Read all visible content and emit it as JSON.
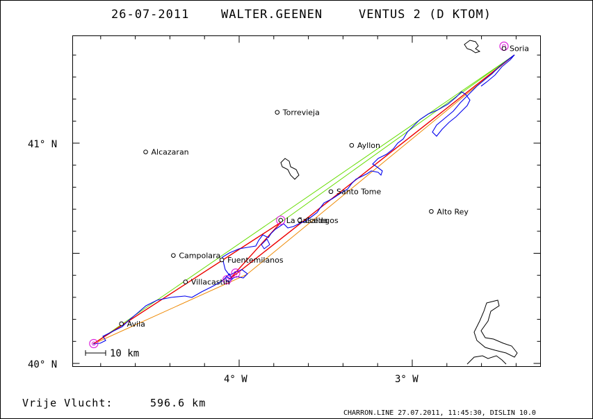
{
  "title": {
    "date": "26-07-2011",
    "pilot": "WALTER.GEENEN",
    "glider": "VENTUS 2 (D KTOM)"
  },
  "axes": {
    "lat_labels": [
      {
        "text": "41° N",
        "value": 41.0
      },
      {
        "text": "40° N",
        "value": 40.0
      }
    ],
    "lon_labels": [
      {
        "text": "4° W",
        "value": -4.0
      },
      {
        "text": "3° W",
        "value": -3.0
      }
    ],
    "lon_range": [
      -4.96,
      -2.3
    ],
    "lat_range": [
      40.0,
      41.5
    ]
  },
  "towns": [
    {
      "name": "Torrevieja",
      "lon": -3.78,
      "lat": 41.14
    },
    {
      "name": "Alcazaran",
      "lon": -4.54,
      "lat": 40.96
    },
    {
      "name": "Ayllon",
      "lon": -3.35,
      "lat": 40.99
    },
    {
      "name": "Santo Tome",
      "lon": -3.47,
      "lat": 40.78
    },
    {
      "name": "Alto Rey",
      "lon": -2.89,
      "lat": 40.69
    },
    {
      "name": "La Salceda",
      "lon": -3.76,
      "lat": 40.65
    },
    {
      "name": "Gallegos",
      "lon": -3.65,
      "lat": 40.65
    },
    {
      "name": "Campolara",
      "lon": -4.38,
      "lat": 40.49
    },
    {
      "name": "Fuentemilanos",
      "lon": -4.1,
      "lat": 40.47
    },
    {
      "name": "Villacastin",
      "lon": -4.31,
      "lat": 40.37
    },
    {
      "name": "Avila",
      "lon": -4.68,
      "lat": 40.18
    },
    {
      "name": "Soria",
      "lon": -2.47,
      "lat": 41.43
    }
  ],
  "turnpoints": [
    {
      "lon": -4.84,
      "lat": 40.09
    },
    {
      "lon": -2.47,
      "lat": 41.44
    },
    {
      "lon": -3.76,
      "lat": 40.65
    },
    {
      "lon": -4.02,
      "lat": 40.41
    },
    {
      "lon": -4.07,
      "lat": 40.38
    }
  ],
  "scale_bar": {
    "label": "10 km"
  },
  "footer": {
    "distance_label": "Vrije Vlucht:",
    "distance_value": "596.6 km",
    "software": "CHARRON.LINE 27.07.2011, 11:45:30, DISLIN 10.0"
  },
  "colors": {
    "track": "#0000ee",
    "task_line": "#ee0000",
    "optimized_line": "#66dd00",
    "leg_line": "#ee8800",
    "turnpoint_circle": "#dd22dd",
    "frame": "#000000"
  }
}
